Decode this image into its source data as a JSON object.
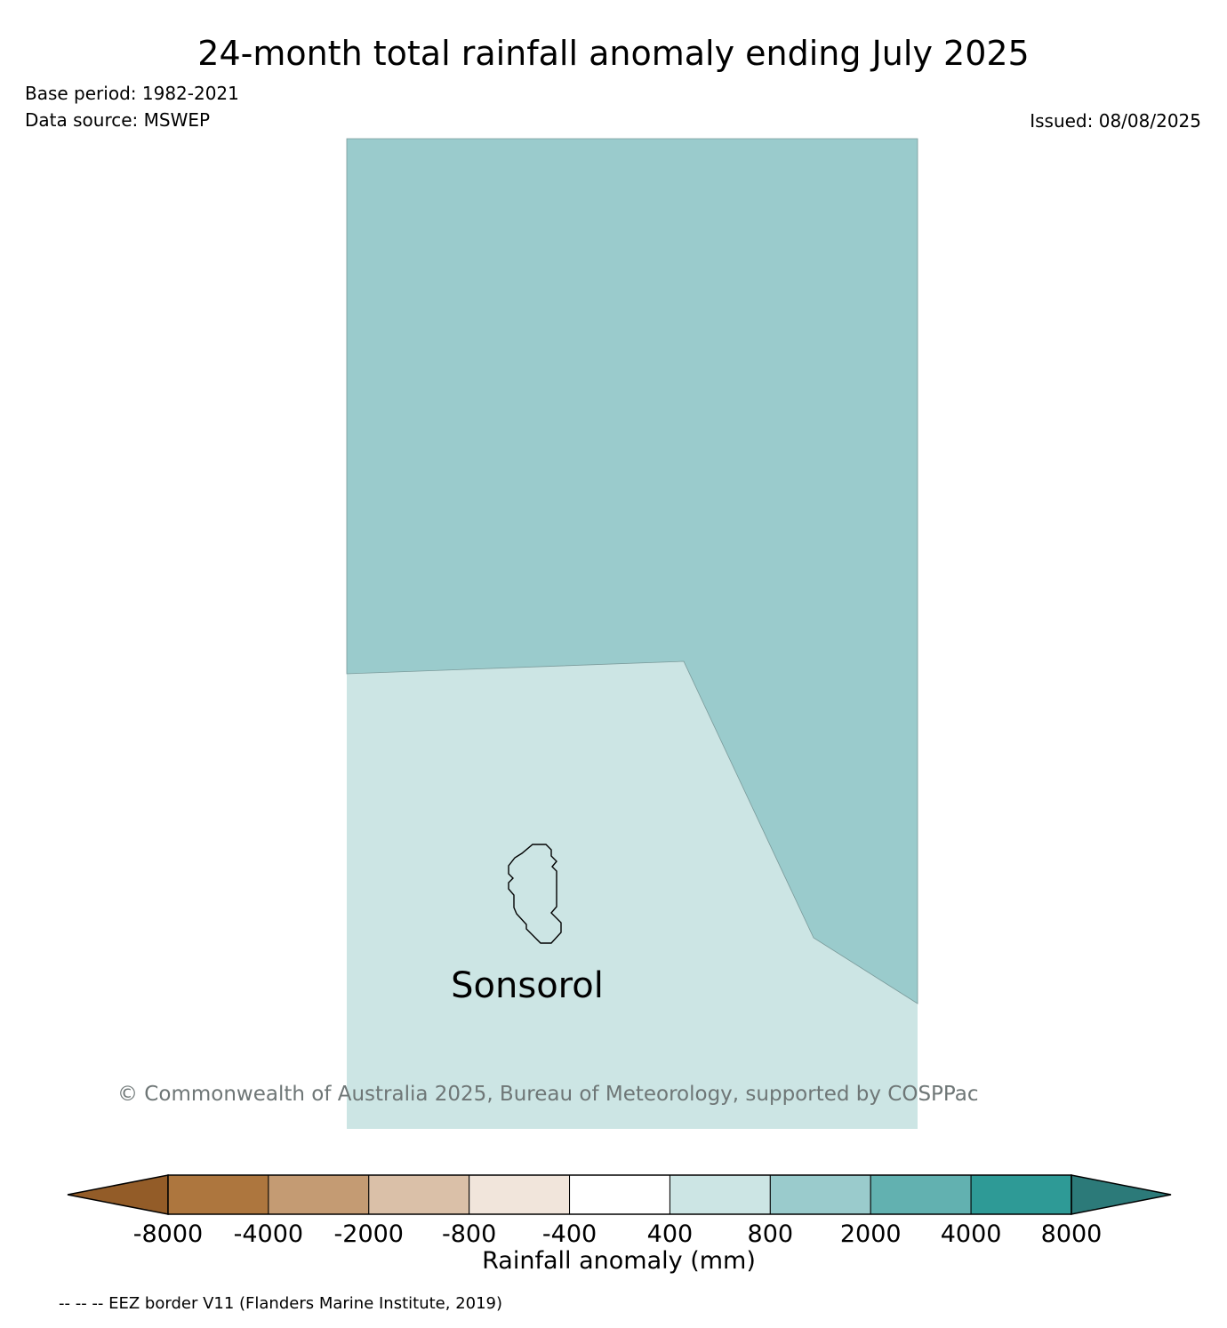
{
  "header": {
    "title": "24-month total rainfall anomaly ending July 2025",
    "base_period": "Base period: 1982-2021",
    "data_source": "Data source: MSWEP",
    "issued": "Issued: 08/08/2025"
  },
  "map": {
    "island_label": "Sonsorol",
    "region_colors": {
      "800_to_2000": "#9acbcc",
      "400_to_800": "#cce5e4"
    }
  },
  "legend": {
    "title": "Rainfall anomaly (mm)",
    "tick_labels": [
      "-8000",
      "-4000",
      "-2000",
      "-800",
      "-400",
      "400",
      "800",
      "2000",
      "4000",
      "8000"
    ],
    "extend_low_color": "#935c28",
    "extend_high_color": "#2c7a79",
    "bin_colors": [
      "#ad763e",
      "#c49b73",
      "#dac0a8",
      "#f1e5db",
      "#ffffff",
      "#cce5e4",
      "#9acbcc",
      "#62b1b0",
      "#2e9a96"
    ]
  },
  "footer": {
    "copyright": "© Commonwealth of Australia 2025, Bureau of Meteorology, supported by COSPPac",
    "eez_note": "-- -- -- EEZ border V11 (Flanders Marine Institute, 2019)"
  }
}
